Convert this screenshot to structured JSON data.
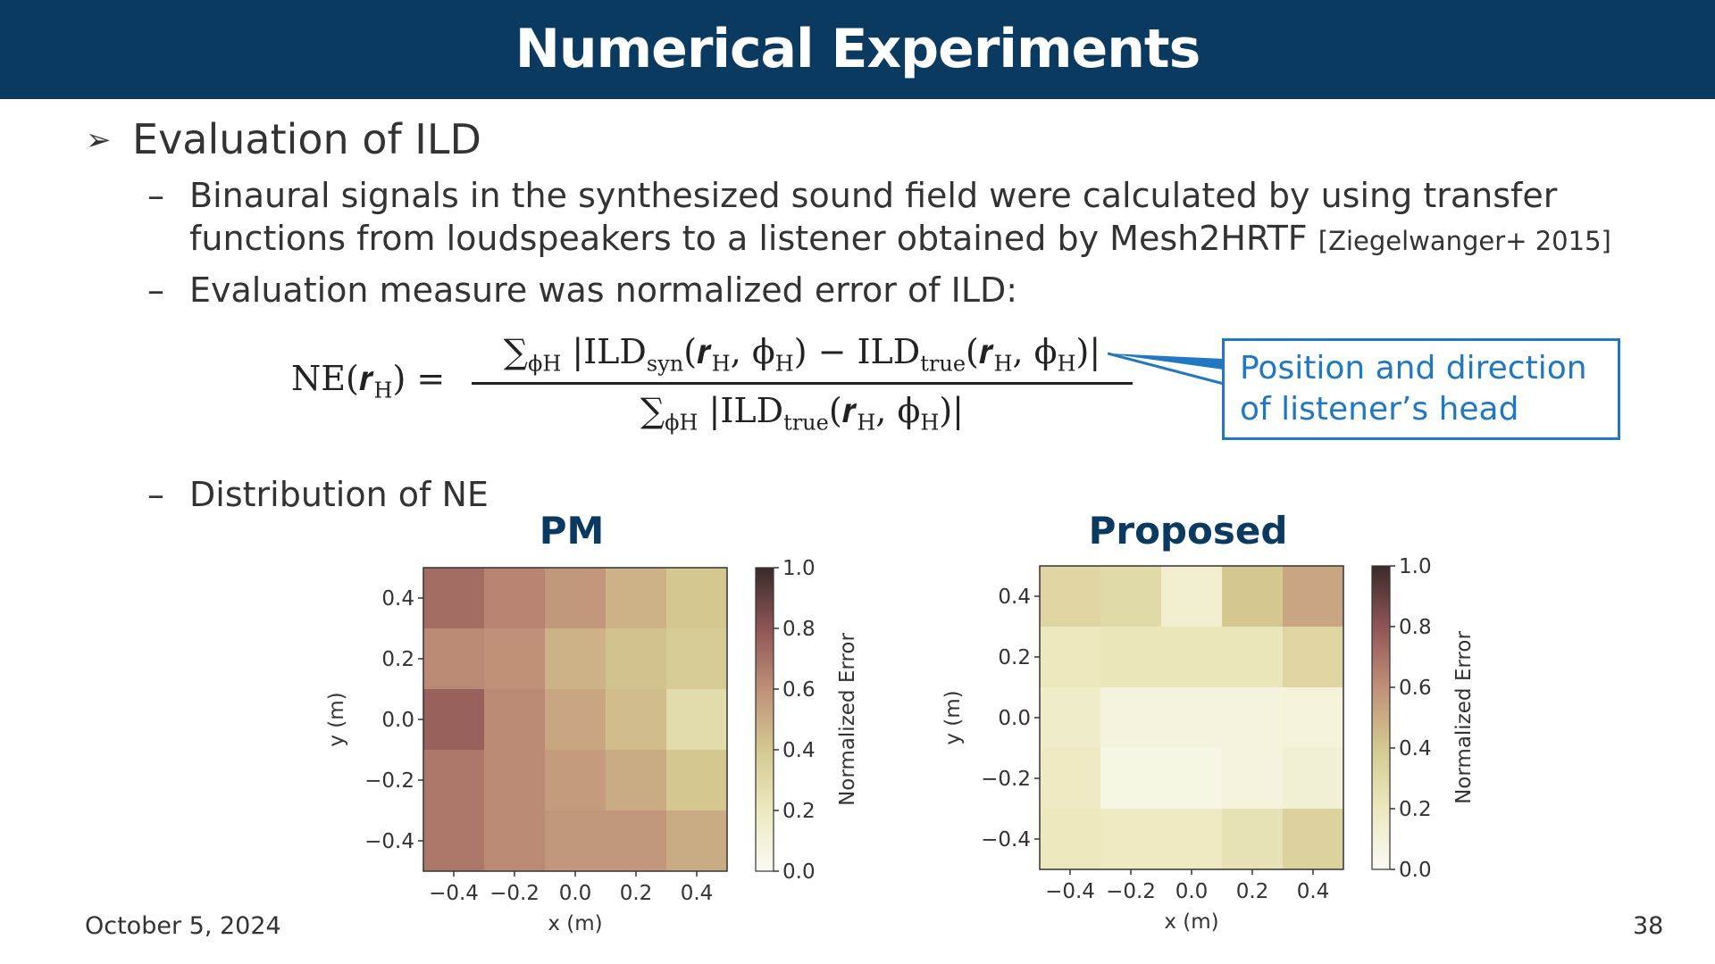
{
  "slide": {
    "title": "Numerical Experiments",
    "bullet_marker": "➢",
    "bullet_main": "Evaluation of ILD",
    "dash": "–",
    "sub1_line1": "Binaural signals in the synthesized sound field were calculated by using transfer",
    "sub1_line2": "functions from loudspeakers to a listener obtained by Mesh2HRTF",
    "sub1_cite": "[Ziegelwanger+ 2015]",
    "sub2": "Evaluation measure was normalized error of ILD:",
    "sub3": "Distribution of NE",
    "callout_line1": "Position and direction",
    "callout_line2": "of listener’s head",
    "footer_date": "October 5, 2024",
    "footer_page": "38"
  },
  "formula": {
    "lhs": "NE(𝒓",
    "lhs_sub": "H",
    "lhs_end": ") =",
    "num_sum": "∑",
    "num_sum_sub": "ϕH",
    "num_body_1": "|ILD",
    "num_syn": "syn",
    "num_body_2": "(𝒓",
    "num_body_3": ", ϕ",
    "num_body_4": ") − ILD",
    "num_true": "true",
    "num_body_5": "(𝒓",
    "num_body_6": ", ϕ",
    "num_body_7": ")|",
    "den_sum": "∑",
    "den_sum_sub": "ϕH",
    "den_body_1": "|ILD",
    "den_true": "true",
    "den_body_2": "(𝒓",
    "den_body_3": ", ϕ",
    "den_body_4": ")|",
    "sub_H": "H"
  },
  "colors": {
    "title_bg": "#0b3a61",
    "panel_title": "#0b3a61",
    "callout": "#1f78c1",
    "cmap": [
      "#fbfaf3",
      "#ece9bf",
      "#d4c890",
      "#c09078",
      "#8f5555",
      "#3a2a2a"
    ]
  },
  "chart_data": [
    {
      "type": "heatmap",
      "title": "PM",
      "xlabel": "x (m)",
      "ylabel": "y (m)",
      "colorbar_label": "Normalized Error",
      "x": [
        -0.4,
        -0.2,
        0.0,
        0.2,
        0.4
      ],
      "y": [
        0.4,
        0.2,
        0.0,
        -0.2,
        -0.4
      ],
      "xticklabels": [
        "−0.4",
        "−0.2",
        "0.0",
        "0.2",
        "0.4"
      ],
      "yticklabels": [
        "0.4",
        "0.2",
        "0.0",
        "−0.2",
        "−0.4"
      ],
      "colorbar_ticks": [
        "1.0",
        "0.8",
        "0.6",
        "0.4",
        "0.2",
        "0.0"
      ],
      "vmin": 0.0,
      "vmax": 1.0,
      "values": [
        [
          0.72,
          0.64,
          0.58,
          0.48,
          0.4
        ],
        [
          0.62,
          0.6,
          0.48,
          0.42,
          0.38
        ],
        [
          0.76,
          0.62,
          0.52,
          0.44,
          0.28
        ],
        [
          0.68,
          0.62,
          0.56,
          0.5,
          0.4
        ],
        [
          0.68,
          0.62,
          0.58,
          0.58,
          0.5
        ]
      ]
    },
    {
      "type": "heatmap",
      "title": "Proposed",
      "xlabel": "x (m)",
      "ylabel": "y (m)",
      "colorbar_label": "Normalized Error",
      "x": [
        -0.4,
        -0.2,
        0.0,
        0.2,
        0.4
      ],
      "y": [
        0.4,
        0.2,
        0.0,
        -0.2,
        -0.4
      ],
      "xticklabels": [
        "−0.4",
        "−0.2",
        "0.0",
        "0.2",
        "0.4"
      ],
      "yticklabels": [
        "0.4",
        "0.2",
        "0.0",
        "−0.2",
        "−0.4"
      ],
      "colorbar_ticks": [
        "1.0",
        "0.8",
        "0.6",
        "0.4",
        "0.2",
        "0.0"
      ],
      "vmin": 0.0,
      "vmax": 1.0,
      "values": [
        [
          0.32,
          0.3,
          0.14,
          0.4,
          0.52
        ],
        [
          0.2,
          0.22,
          0.22,
          0.22,
          0.32
        ],
        [
          0.16,
          0.08,
          0.08,
          0.08,
          0.1
        ],
        [
          0.18,
          0.06,
          0.06,
          0.08,
          0.12
        ],
        [
          0.2,
          0.18,
          0.18,
          0.24,
          0.34
        ]
      ]
    }
  ]
}
